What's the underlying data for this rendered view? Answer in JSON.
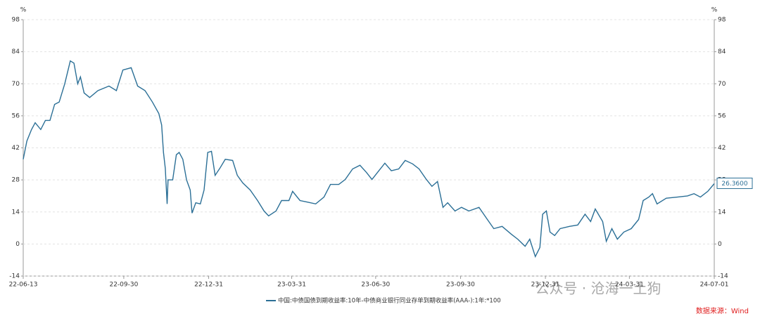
{
  "chart_data": {
    "type": "line",
    "y_unit": "%",
    "y2_unit": "%",
    "x": [
      "22-06-13",
      "22-06-17",
      "22-06-22",
      "22-06-26",
      "22-07-02",
      "22-07-07",
      "22-07-12",
      "22-07-17",
      "22-07-22",
      "22-07-28",
      "22-08-03",
      "22-08-07",
      "22-08-11",
      "22-08-14",
      "22-08-18",
      "22-08-24",
      "22-09-02",
      "22-09-14",
      "22-09-22",
      "22-09-29",
      "22-10-08",
      "22-10-15",
      "22-10-23",
      "22-10-31",
      "22-11-07",
      "22-11-10",
      "22-11-12",
      "22-11-14",
      "22-11-16",
      "22-11-17",
      "22-11-22",
      "22-11-26",
      "22-11-29",
      "22-12-03",
      "22-12-07",
      "22-12-11",
      "22-12-13",
      "22-12-17",
      "22-12-22",
      "22-12-26",
      "22-12-30",
      "23-01-03",
      "23-01-07",
      "23-01-12",
      "23-01-18",
      "23-01-26",
      "23-01-31",
      "23-02-06",
      "23-02-14",
      "23-02-22",
      "23-03-01",
      "23-03-06",
      "23-03-14",
      "23-03-20",
      "23-03-28",
      "23-04-01",
      "23-04-09",
      "23-04-16",
      "23-04-26",
      "23-05-05",
      "23-05-12",
      "23-05-21",
      "23-05-28",
      "23-06-05",
      "23-06-13",
      "23-06-20",
      "23-06-26",
      "23-07-02",
      "23-07-10",
      "23-07-17",
      "23-07-25",
      "23-08-01",
      "23-08-09",
      "23-08-16",
      "23-08-24",
      "23-08-30",
      "23-09-05",
      "23-09-11",
      "23-09-16",
      "23-09-24",
      "23-10-01",
      "23-10-09",
      "23-10-20",
      "23-10-28",
      "23-11-05",
      "23-11-14",
      "23-11-24",
      "23-12-01",
      "23-12-09",
      "23-12-14",
      "23-12-20",
      "23-12-25",
      "23-12-28",
      "24-01-01",
      "24-01-05",
      "24-01-10",
      "24-01-16",
      "24-01-26",
      "24-02-04",
      "24-02-12",
      "24-02-18",
      "24-02-23",
      "24-03-02",
      "24-03-06",
      "24-03-12",
      "24-03-18",
      "24-03-25",
      "24-04-02",
      "24-04-10",
      "24-04-15",
      "24-04-21",
      "24-04-25",
      "24-04-30",
      "24-05-10",
      "24-05-22",
      "24-06-02",
      "24-06-09",
      "24-06-16",
      "24-06-24",
      "24-07-01"
    ],
    "series": [
      {
        "name": "中国:中债国债到期收益率:10年-中债商业银行同业存单到期收益率(AAA-):1年:*100",
        "color": "#2b6f96",
        "values": [
          37,
          45,
          50,
          53,
          50,
          54,
          54,
          61,
          62,
          70,
          80,
          79,
          70,
          73,
          66,
          64,
          67,
          69,
          67,
          76,
          77,
          69,
          67,
          62,
          57,
          52,
          40,
          33,
          17.5,
          28,
          28,
          39,
          40,
          37,
          28,
          23.6,
          13.5,
          18,
          17.5,
          23.6,
          40,
          40.5,
          30,
          33,
          37,
          36.5,
          30,
          26.7,
          23.6,
          19,
          14.4,
          12.3,
          14.4,
          19,
          19,
          23,
          19,
          18.4,
          17.5,
          20.5,
          26,
          26,
          28.2,
          32.8,
          34.4,
          31.3,
          28.2,
          31.3,
          35.3,
          32,
          32.8,
          36.5,
          35,
          32.8,
          28.2,
          25.2,
          27.3,
          16,
          18,
          14.4,
          16,
          14.4,
          16,
          11.3,
          6.7,
          7.7,
          4.3,
          2.1,
          -1,
          2.1,
          -5.5,
          -1.5,
          13,
          14.4,
          5.2,
          3.7,
          6.7,
          7.7,
          8.3,
          13,
          9.8,
          15.3,
          9.8,
          1.2,
          6.7,
          2.1,
          5.2,
          6.7,
          10.7,
          19,
          20.5,
          22,
          17.5,
          20,
          20.5,
          21,
          22,
          20.5,
          23,
          26.36
        ],
        "value_labels": [
          null,
          null,
          null,
          null,
          null,
          null,
          null,
          null,
          null,
          null,
          null,
          null,
          null,
          null,
          null,
          null,
          null,
          null,
          null,
          null,
          null,
          null,
          null,
          null,
          null,
          null,
          null,
          null,
          null,
          null,
          null,
          null,
          null,
          null,
          null,
          null,
          null,
          null,
          null,
          null,
          null,
          null,
          null,
          null,
          null,
          null,
          null,
          null,
          null,
          null,
          null,
          null,
          null,
          null,
          null,
          null,
          null,
          null,
          null,
          null,
          null,
          null,
          null,
          null,
          null,
          null,
          null,
          null,
          null,
          null,
          null,
          null,
          null,
          null,
          null,
          null,
          null,
          null,
          null,
          null,
          null,
          null,
          null,
          null,
          null,
          null,
          null,
          null,
          null,
          null,
          null,
          null,
          null,
          null,
          null,
          null,
          null,
          null,
          null,
          null,
          null,
          null,
          null,
          null,
          null,
          null,
          null,
          null,
          null,
          null,
          null,
          null,
          null,
          null,
          null,
          null,
          null,
          null,
          null,
          "26.3600"
        ]
      }
    ],
    "xlim": [
      "22-06-13",
      "24-07-01"
    ],
    "xticks": [
      "22-06-13",
      "22-09-30",
      "22-12-31",
      "23-03-31",
      "23-06-30",
      "23-09-30",
      "23-12-31",
      "24-03-31",
      "24-07-01"
    ],
    "ylim": [
      -14,
      98
    ],
    "yticks": [
      -14,
      0,
      14,
      28,
      42,
      56,
      70,
      84,
      98
    ],
    "y2lim": [
      -14,
      98
    ],
    "y2ticks": [
      -14,
      0,
      14,
      28,
      42,
      56,
      70,
      84,
      98
    ],
    "grid": true,
    "watermark": "公众号 · 沧海一土狗",
    "source": "数据来源：Wind"
  }
}
